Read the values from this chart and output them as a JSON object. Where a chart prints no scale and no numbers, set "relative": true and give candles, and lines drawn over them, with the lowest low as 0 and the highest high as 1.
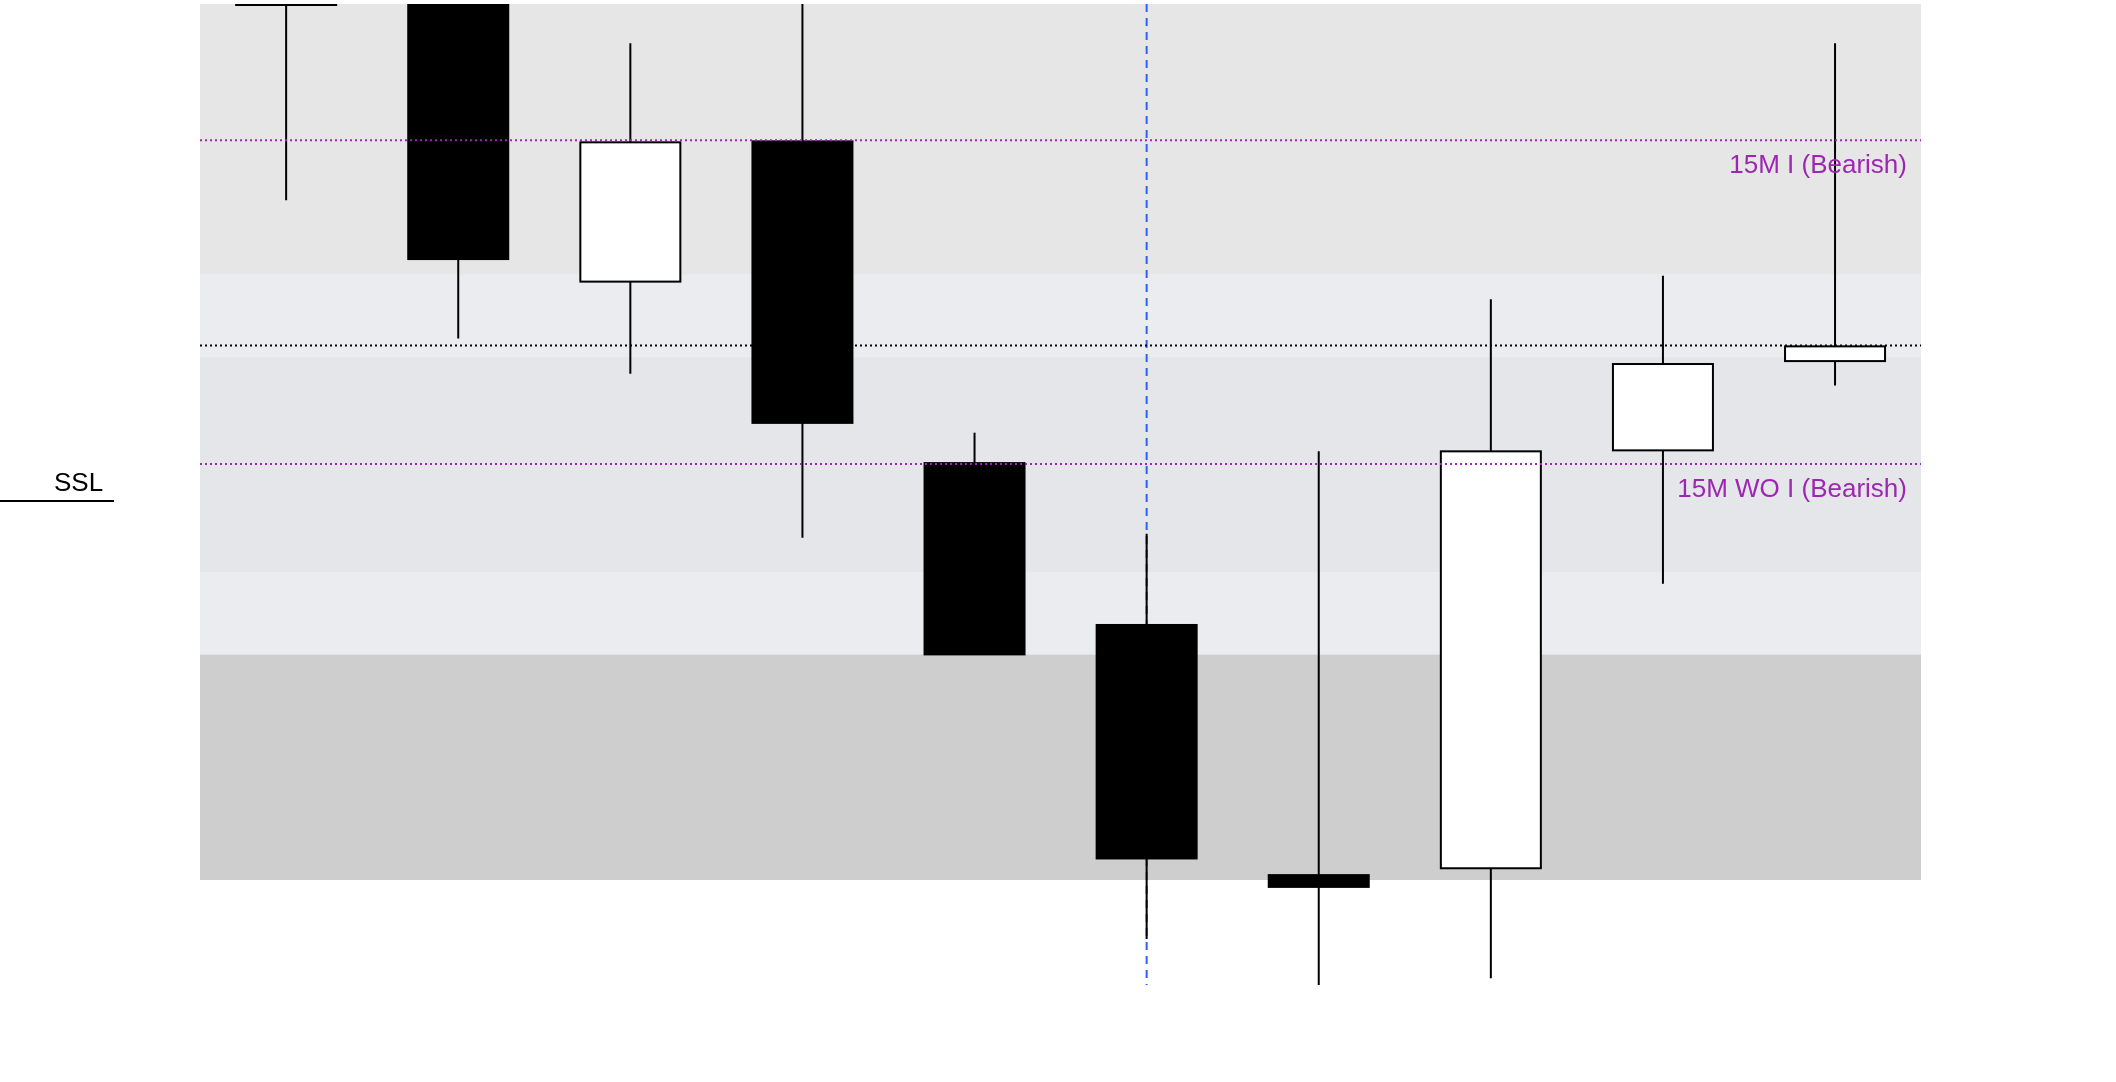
{
  "chart_data": {
    "type": "candlestick",
    "relative": true,
    "categories": [
      null,
      null,
      null,
      null,
      null,
      null,
      null,
      null,
      null,
      null
    ],
    "ohlc": [
      [
        1,
        1,
        0.8,
        1
      ],
      [
        1,
        1,
        0.659,
        0.74
      ],
      [
        0.717,
        0.96,
        0.623,
        0.859
      ],
      [
        0.86,
        1,
        0.456,
        0.573
      ],
      [
        0.532,
        0.563,
        0.337,
        0.337
      ],
      [
        0.367,
        0.46,
        0.047,
        0.129
      ],
      [
        0.112,
        0.544,
        0,
        0.1
      ],
      [
        0.119,
        0.699,
        0.007,
        0.544
      ],
      [
        0.545,
        0.723,
        0.409,
        0.633
      ],
      [
        0.636,
        0.96,
        0.611,
        0.651
      ]
    ],
    "colors": [
      "#000000",
      "#000000",
      "#ffffff",
      "#000000",
      "#000000",
      "#000000",
      "#000000",
      "#ffffff",
      "#ffffff",
      "#ffffff"
    ],
    "bands": [
      {
        "axis": "y",
        "from": 0.724,
        "to": 1,
        "color": "#e6e6e6"
      },
      {
        "axis": "y",
        "from": 0.421,
        "to": 0.64,
        "color": "#e6e6e6"
      },
      {
        "axis": "y",
        "from": 0.337,
        "to": 0.724,
        "color": "#e3e5ea"
      },
      {
        "axis": "y",
        "from": 0.107,
        "to": 0.337,
        "color": "#cecece"
      }
    ],
    "ref_lines": [
      {
        "axis": "y",
        "value": 0.861,
        "label": "15M I (Bearish)",
        "color": "#9c27b0",
        "line_style": "dotted"
      },
      {
        "axis": "y",
        "value": 0.531,
        "label": "15M WO I (Bearish)",
        "color": "#9c27b0",
        "line_style": "dotted"
      },
      {
        "axis": "y",
        "value": 0.652,
        "label": null,
        "color": "#000000",
        "line_style": "dotted"
      }
    ],
    "annotations": [
      "SSL"
    ],
    "grid": false,
    "legend": false
  }
}
